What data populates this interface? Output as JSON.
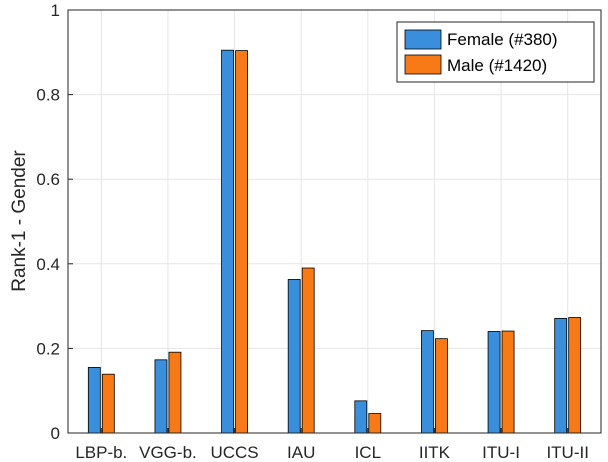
{
  "chart_data": {
    "type": "bar",
    "categories": [
      "LBP-b.",
      "VGG-b.",
      "UCCS",
      "IAU",
      "ICL",
      "IITK",
      "ITU-I",
      "ITU-II"
    ],
    "series": [
      {
        "name": "Female (#380)",
        "values": [
          0.155,
          0.173,
          0.905,
          0.363,
          0.076,
          0.242,
          0.24,
          0.271
        ],
        "color": "#3a8fdd"
      },
      {
        "name": "Male (#1420)",
        "values": [
          0.139,
          0.191,
          0.904,
          0.39,
          0.046,
          0.223,
          0.241,
          0.273
        ],
        "color": "#f87a17"
      }
    ],
    "title": "",
    "xlabel": "",
    "ylabel": "Rank-1 - Gender",
    "ylim": [
      0,
      1
    ],
    "yticks": [
      "0",
      "0.2",
      "0.4",
      "0.6",
      "0.8",
      "1"
    ],
    "grid": true,
    "legend_position": "top-right"
  }
}
